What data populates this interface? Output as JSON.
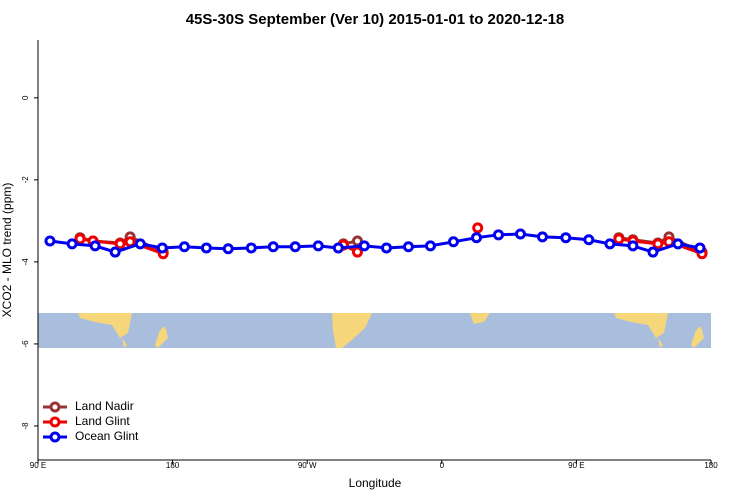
{
  "chart_data": {
    "type": "line",
    "title": "45S-30S September (Ver 10)   2015-01-01 to 2020-12-18",
    "x_label": "Longitude",
    "y_label": "XCO2 - MLO trend (ppm)",
    "xlim": [
      90,
      540
    ],
    "xticks": [
      {
        "value": 90,
        "label": "90 E"
      },
      {
        "value": 180,
        "label": "180"
      },
      {
        "value": 270,
        "label": "90 W"
      },
      {
        "value": 360,
        "label": "0"
      },
      {
        "value": 450,
        "label": "90 E"
      },
      {
        "value": 540,
        "label": "180"
      }
    ],
    "ylim": [
      -8.83,
      1.41
    ],
    "yticks": [
      0,
      -2,
      -4,
      -6,
      -8
    ],
    "legend": "bottom-left",
    "series": [
      {
        "name": "Land Nadir",
        "color": "#993333",
        "x": [
          118.1,
          126.8,
          144.9,
          151.6,
          173.7,
          null,
          294.2,
          303.6,
          null,
          478.4,
          487.8,
          504.5,
          511.9,
          534.0
        ],
        "values": [
          -3.41,
          -3.49,
          -3.54,
          -3.39,
          -3.76,
          null,
          -3.56,
          -3.49,
          null,
          -3.41,
          -3.46,
          -3.54,
          -3.39,
          -3.76
        ]
      },
      {
        "name": "Land Glint",
        "color": "#ee0000",
        "x": [
          118.1,
          126.8,
          144.9,
          151.6,
          173.7,
          null,
          294.2,
          303.6,
          null,
          384.0,
          null,
          478.4,
          487.8,
          504.5,
          511.9,
          534.0
        ],
        "values": [
          -3.44,
          -3.49,
          -3.56,
          -3.51,
          -3.8,
          null,
          -3.59,
          -3.76,
          null,
          -3.17,
          null,
          -3.44,
          -3.49,
          -3.56,
          -3.51,
          -3.8
        ]
      },
      {
        "name": "Ocean Glint",
        "color": "#0000ee",
        "x": [
          98.0,
          112.8,
          128.2,
          141.6,
          158.4,
          173.1,
          187.9,
          202.6,
          217.2,
          232.6,
          247.3,
          262.0,
          277.4,
          290.8,
          308.2,
          323.0,
          337.7,
          352.4,
          367.8,
          383.2,
          397.9,
          412.6,
          427.3,
          442.9,
          458.3,
          472.4,
          487.8,
          501.2,
          517.9,
          532.6
        ],
        "values": [
          -3.49,
          -3.56,
          -3.61,
          -3.76,
          -3.56,
          -3.66,
          -3.63,
          -3.66,
          -3.68,
          -3.66,
          -3.63,
          -3.63,
          -3.61,
          -3.66,
          -3.61,
          -3.66,
          -3.63,
          -3.61,
          -3.51,
          -3.41,
          -3.34,
          -3.32,
          -3.39,
          -3.41,
          -3.46,
          -3.56,
          -3.61,
          -3.76,
          -3.56,
          -3.66
        ]
      }
    ]
  }
}
